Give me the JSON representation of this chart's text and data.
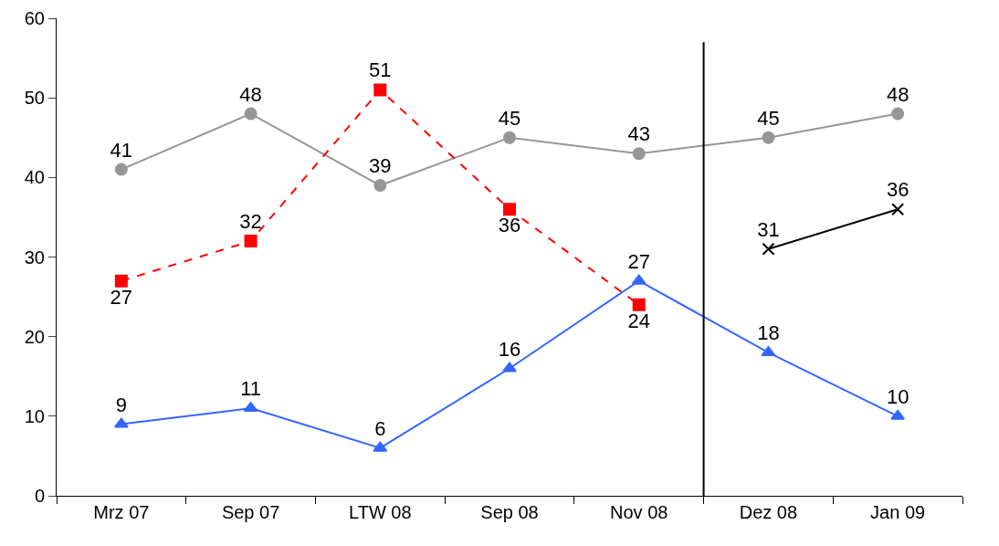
{
  "chart_data": {
    "type": "line",
    "categories": [
      "Mrz 07",
      "Sep 07",
      "LTW 08",
      "Sep 08",
      "Nov 08",
      "Dez 08",
      "Jan 09"
    ],
    "series": [
      {
        "color": "#969696",
        "marker": "circle",
        "line_style": "solid",
        "values": [
          41,
          48,
          39,
          45,
          43,
          45,
          48
        ]
      },
      {
        "color": "#ff0000",
        "marker": "square",
        "line_style": "dashed",
        "values": [
          27,
          32,
          51,
          36,
          24,
          null,
          null
        ]
      },
      {
        "color": "#3366ff",
        "marker": "triangle",
        "line_style": "solid",
        "values": [
          9,
          11,
          6,
          16,
          27,
          18,
          10
        ]
      },
      {
        "color": "#000000",
        "marker": "cross",
        "line_style": "solid",
        "values": [
          null,
          null,
          null,
          null,
          null,
          31,
          36
        ]
      }
    ],
    "ylim": [
      0,
      60
    ],
    "yticks": [
      0,
      10,
      20,
      30,
      40,
      50,
      60
    ],
    "grid": false,
    "data_labels": true
  }
}
